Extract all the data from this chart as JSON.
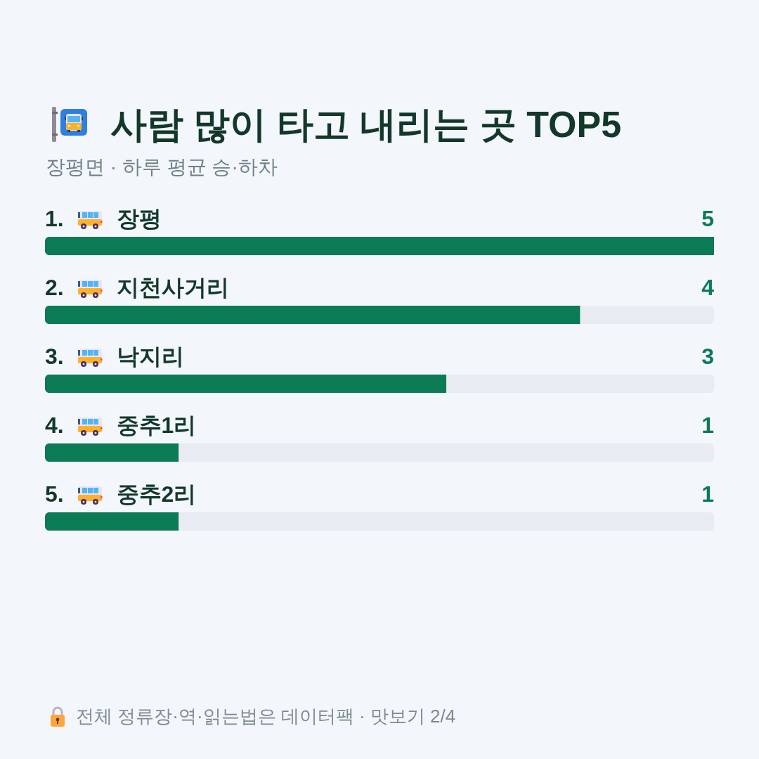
{
  "chart_data": {
    "type": "bar",
    "orientation": "horizontal",
    "title": "사람 많이 타고 내리는 곳 TOP5",
    "subtitle": "장평면 · 하루 평균 승·하차",
    "categories": [
      "장평",
      "지천사거리",
      "낙지리",
      "중추1리",
      "중추2리"
    ],
    "values": [
      5,
      4,
      3,
      1,
      1
    ],
    "color": "#0b7b55",
    "data_labels": true,
    "tick_labels": "y",
    "annotations": [
      "1.",
      "2.",
      "3.",
      "4.",
      "5.",
      "전체 정류장·역·읽는법은 데이터팩 · 맛보기 2/4"
    ]
  }
}
